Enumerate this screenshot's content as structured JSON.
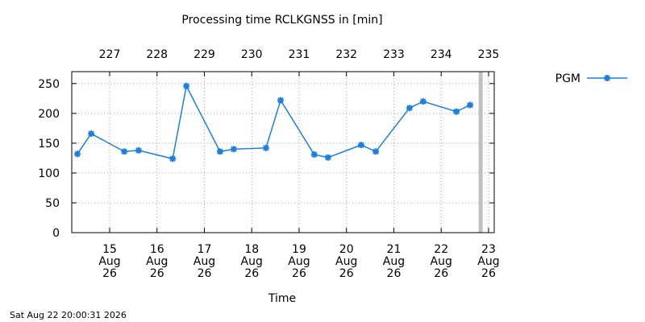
{
  "chart_data": {
    "type": "line",
    "title": "Processing time RCLKGNSS in [min]",
    "x_label": "Time",
    "timestamp": "Sat Aug 22 20:00:31 2026",
    "x": [
      14.32,
      14.61,
      15.31,
      15.61,
      16.33,
      16.62,
      17.33,
      17.62,
      18.3,
      18.61,
      19.32,
      19.61,
      20.31,
      20.62,
      21.33,
      21.62,
      22.32,
      22.61
    ],
    "series": [
      {
        "name": "PGM",
        "color": "#1a7fe0",
        "values": [
          132,
          166,
          136,
          138,
          124,
          246,
          136,
          140,
          142,
          222,
          131,
          126,
          147,
          136,
          209,
          220,
          203,
          214
        ]
      }
    ],
    "now_marker": 22.834,
    "xlim": [
      14.2,
      23.12
    ],
    "xticks": [
      {
        "value": 15,
        "label": "15\nAug\n26"
      },
      {
        "value": 16,
        "label": "16\nAug\n26"
      },
      {
        "value": 17,
        "label": "17\nAug\n26"
      },
      {
        "value": 18,
        "label": "18\nAug\n26"
      },
      {
        "value": 19,
        "label": "19\nAug\n26"
      },
      {
        "value": 20,
        "label": "20\nAug\n26"
      },
      {
        "value": 21,
        "label": "21\nAug\n26"
      },
      {
        "value": 22,
        "label": "22\nAug\n26"
      },
      {
        "value": 23,
        "label": "23\nAug\n26"
      }
    ],
    "x2ticks": [
      {
        "value": 15,
        "label": "227"
      },
      {
        "value": 16,
        "label": "228"
      },
      {
        "value": 17,
        "label": "229"
      },
      {
        "value": 18,
        "label": "230"
      },
      {
        "value": 19,
        "label": "231"
      },
      {
        "value": 20,
        "label": "232"
      },
      {
        "value": 21,
        "label": "233"
      },
      {
        "value": 22,
        "label": "234"
      },
      {
        "value": 23,
        "label": "235"
      }
    ],
    "ylim": [
      0,
      270
    ],
    "yticks": [
      0,
      50,
      100,
      150,
      200,
      250
    ],
    "grid": true
  }
}
